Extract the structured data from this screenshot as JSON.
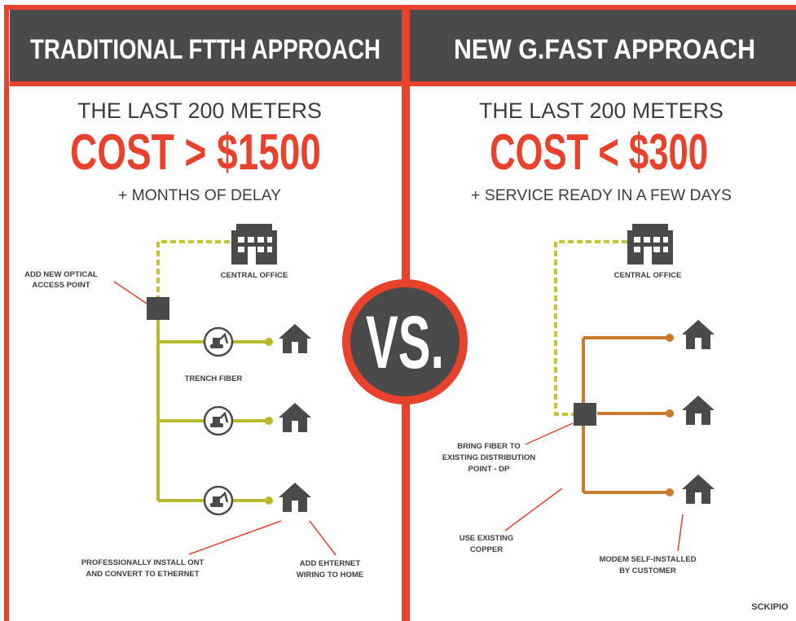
{
  "left": {
    "header": "TRADITIONAL FTTH APPROACH",
    "subtitle": "THE LAST 200 METERS",
    "cost": "COST > $1500",
    "note": "+ MONTHS OF DELAY",
    "labels": {
      "access_point": [
        "ADD NEW OPTICAL",
        "ACCESS POINT"
      ],
      "central_office": "CENTRAL OFFICE",
      "trench": "TRENCH FIBER",
      "install": [
        "PROFESSIONALLY INSTALL ONT",
        "AND CONVERT TO ETHERNET"
      ],
      "wiring": [
        "ADD EHTERNET",
        "WIRING TO HOME"
      ]
    }
  },
  "right": {
    "header": "NEW G.FAST APPROACH",
    "subtitle": "THE LAST 200 METERS",
    "cost": "COST < $300",
    "note": "+ SERVICE READY IN A FEW DAYS",
    "labels": {
      "central_office": "CENTRAL OFFICE",
      "fiber": [
        "BRING FIBER TO",
        "EXISTING DISTRIBUTION",
        "POINT - DP"
      ],
      "copper": [
        "USE EXISTING",
        "COPPER"
      ],
      "modem": [
        "MODEM SELF-INSTALLED",
        "BY CUSTOMER"
      ]
    }
  },
  "vs": "VS.",
  "brand": "SCKIPIO"
}
